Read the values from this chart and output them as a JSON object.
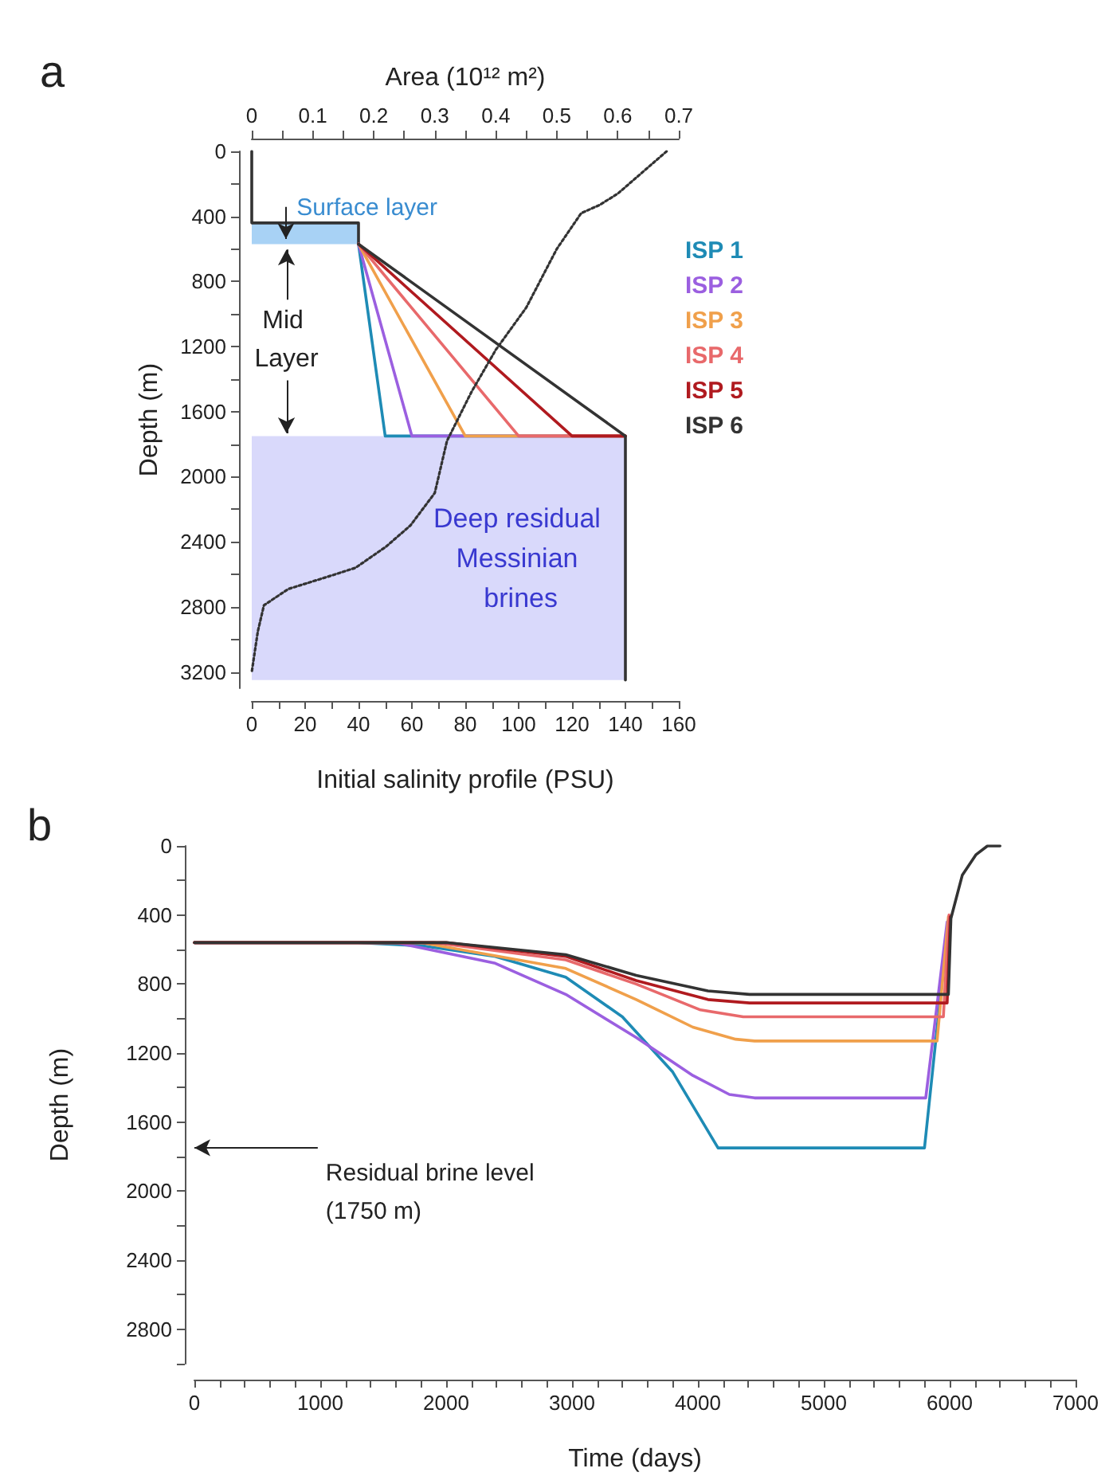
{
  "chart_data": [
    {
      "type": "line",
      "title": "a",
      "xlabel": "Initial salinity profile (PSU)",
      "x2label": "Area (10¹² m²)",
      "ylabel": "Depth (m)",
      "xlim": [
        0,
        160
      ],
      "xticks": [
        0,
        {
          "value": 10,
          "label": null
        },
        20,
        {
          "value": 30,
          "label": null
        },
        40,
        {
          "value": 50,
          "label": null
        },
        60,
        {
          "value": 70,
          "label": null
        },
        80,
        {
          "value": 90,
          "label": null
        },
        100,
        {
          "value": 110,
          "label": null
        },
        120,
        {
          "value": 130,
          "label": null
        },
        140,
        {
          "value": 150,
          "label": null
        },
        160
      ],
      "x2lim": [
        0,
        0.7
      ],
      "x2ticks": [
        0,
        {
          "value": 0.05,
          "label": null
        },
        0.1,
        {
          "value": 0.15,
          "label": null
        },
        0.2,
        {
          "value": 0.25,
          "label": null
        },
        0.3,
        {
          "value": 0.35,
          "label": null
        },
        0.4,
        {
          "value": 0.45,
          "label": null
        },
        0.5,
        {
          "value": 0.55,
          "label": null
        },
        0.6,
        {
          "value": 0.65,
          "label": null
        },
        0.7
      ],
      "ylim": [
        3300,
        0
      ],
      "yticks": [
        0,
        {
          "value": 200,
          "label": null
        },
        400,
        {
          "value": 600,
          "label": null
        },
        800,
        {
          "value": 1000,
          "label": null
        },
        1200,
        {
          "value": 1400,
          "label": null
        },
        1600,
        {
          "value": 1800,
          "label": null
        },
        2000,
        {
          "value": 2200,
          "label": null
        },
        2400,
        {
          "value": 2600,
          "label": null
        },
        2800,
        {
          "value": 3000,
          "label": null
        },
        3200
      ],
      "marker": "none",
      "legend": "right",
      "series": [
        {
          "color": "#333333",
          "x": [
            0,
            0,
            40,
            40
          ],
          "values": [
            0,
            440,
            440,
            570
          ]
        },
        {
          "name": "ISP 1",
          "color": "#1e8bb5",
          "x": [
            40,
            50,
            140
          ],
          "values": [
            570,
            1750,
            1750
          ]
        },
        {
          "name": "ISP 2",
          "color": "#9b5fe0",
          "x": [
            40,
            60,
            140
          ],
          "values": [
            570,
            1750,
            1750
          ]
        },
        {
          "name": "ISP 3",
          "color": "#f0a04b",
          "x": [
            40,
            80,
            140
          ],
          "values": [
            570,
            1750,
            1750
          ]
        },
        {
          "name": "ISP 4",
          "color": "#e8696b",
          "x": [
            40,
            100,
            140
          ],
          "values": [
            570,
            1750,
            1750
          ]
        },
        {
          "name": "ISP 5",
          "color": "#b01a1f",
          "x": [
            40,
            120,
            140
          ],
          "values": [
            570,
            1750,
            1750
          ]
        },
        {
          "name": "ISP 6",
          "color": "#333333",
          "x": [
            40,
            140,
            140
          ],
          "values": [
            570,
            1750,
            3250
          ]
        },
        {
          "color": "#333333",
          "axis": "x2",
          "line_style": "dotted",
          "x": [
            0.68,
            0.6,
            0.57,
            0.54,
            0.5,
            0.45,
            0.4,
            0.36,
            0.32,
            0.3,
            0.26,
            0.22,
            0.17,
            0.12,
            0.06,
            0.02,
            0.01,
            0.0
          ],
          "values": [
            0,
            260,
            330,
            380,
            600,
            960,
            1220,
            1480,
            1780,
            2100,
            2300,
            2430,
            2560,
            2620,
            2690,
            2790,
            2950,
            3200
          ]
        }
      ],
      "bands": [
        {
          "axis": "y",
          "from": 440,
          "to": 570,
          "label": "Surface layer",
          "color": "#a8d2f5"
        },
        {
          "axis": "y",
          "from": 1750,
          "to": 3250,
          "label": "Deep residual Messinian brines",
          "color": "#d9d9fb"
        }
      ],
      "annotations": [
        {
          "text": "Mid Layer",
          "x": 13,
          "y": 570
        }
      ]
    },
    {
      "type": "line",
      "title": "b",
      "xlabel": "Time (days)",
      "ylabel": "Depth (m)",
      "xlim": [
        0,
        7000
      ],
      "xticks": [
        0,
        {
          "value": 200,
          "label": null
        },
        {
          "value": 400,
          "label": null
        },
        {
          "value": 600,
          "label": null
        },
        {
          "value": 800,
          "label": null
        },
        1000,
        {
          "value": 1200,
          "label": null
        },
        {
          "value": 1400,
          "label": null
        },
        {
          "value": 1600,
          "label": null
        },
        {
          "value": 1800,
          "label": null
        },
        2000,
        {
          "value": 2200,
          "label": null
        },
        {
          "value": 2400,
          "label": null
        },
        {
          "value": 2600,
          "label": null
        },
        {
          "value": 2800,
          "label": null
        },
        3000,
        {
          "value": 3200,
          "label": null
        },
        {
          "value": 3400,
          "label": null
        },
        {
          "value": 3600,
          "label": null
        },
        {
          "value": 3800,
          "label": null
        },
        4000,
        {
          "value": 4200,
          "label": null
        },
        {
          "value": 4400,
          "label": null
        },
        {
          "value": 4600,
          "label": null
        },
        {
          "value": 4800,
          "label": null
        },
        5000,
        {
          "value": 5200,
          "label": null
        },
        {
          "value": 5400,
          "label": null
        },
        {
          "value": 5600,
          "label": null
        },
        {
          "value": 5800,
          "label": null
        },
        6000,
        {
          "value": 6200,
          "label": null
        },
        {
          "value": 6400,
          "label": null
        },
        {
          "value": 6600,
          "label": null
        },
        {
          "value": 6800,
          "label": null
        },
        7000
      ],
      "ylim": [
        3000,
        0
      ],
      "yticks": [
        0,
        {
          "value": 200,
          "label": null
        },
        400,
        {
          "value": 600,
          "label": null
        },
        800,
        {
          "value": 1000,
          "label": null
        },
        1200,
        {
          "value": 1400,
          "label": null
        },
        1600,
        {
          "value": 1800,
          "label": null
        },
        2000,
        {
          "value": 2200,
          "label": null
        },
        2400,
        {
          "value": 2600,
          "label": null
        },
        2800,
        {
          "value": 3000,
          "label": null
        }
      ],
      "marker": "none",
      "series": [
        {
          "color": "#1e8bb5",
          "x": [
            0,
            1300,
            1830,
            2390,
            2950,
            3400,
            3800,
            4160,
            5800,
            5990
          ],
          "values": [
            560,
            560,
            580,
            640,
            760,
            990,
            1310,
            1750,
            1750,
            430
          ]
        },
        {
          "color": "#9b5fe0",
          "x": [
            0,
            1600,
            2390,
            2950,
            3510,
            3960,
            4250,
            4450,
            5810,
            5980
          ],
          "values": [
            560,
            560,
            680,
            860,
            1110,
            1330,
            1440,
            1460,
            1460,
            440
          ]
        },
        {
          "color": "#f0a04b",
          "x": [
            0,
            1800,
            2950,
            3510,
            3960,
            4300,
            4450,
            5900,
            5990
          ],
          "values": [
            560,
            560,
            710,
            890,
            1050,
            1120,
            1130,
            1130,
            410
          ]
        },
        {
          "color": "#e8696b",
          "x": [
            0,
            1900,
            2950,
            3510,
            4020,
            4360,
            5950,
            5995
          ],
          "values": [
            560,
            560,
            660,
            800,
            950,
            990,
            990,
            400
          ]
        },
        {
          "color": "#b01a1f",
          "x": [
            0,
            2000,
            2950,
            3510,
            4080,
            4410,
            5980,
            6005
          ],
          "values": [
            560,
            560,
            640,
            780,
            890,
            910,
            910,
            410
          ]
        },
        {
          "color": "#333333",
          "x": [
            0,
            2000,
            2950,
            3510,
            4080,
            4410,
            5990,
            6010,
            6100,
            6210,
            6300,
            6400
          ],
          "values": [
            560,
            560,
            630,
            750,
            840,
            860,
            860,
            420,
            170,
            50,
            0,
            0
          ]
        }
      ],
      "annotations": [
        "Residual brine level\n(1750 m)"
      ]
    }
  ]
}
